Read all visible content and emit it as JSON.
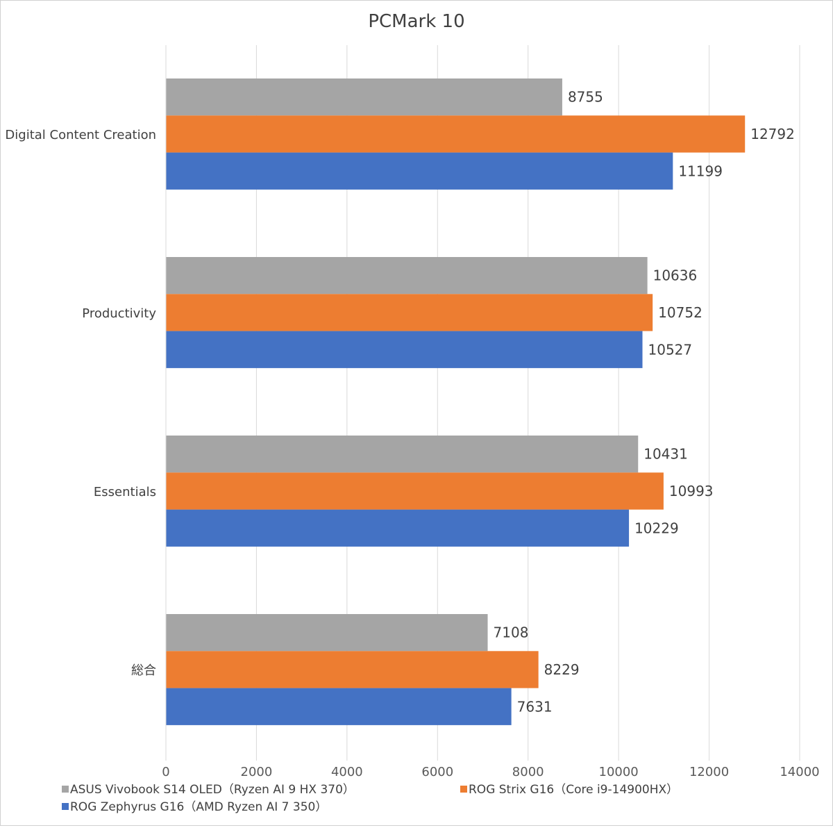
{
  "chart_data": {
    "type": "bar",
    "orientation": "horizontal",
    "title": "PCMark 10",
    "xlabel": "",
    "ylabel": "",
    "xlim": [
      0,
      14000
    ],
    "x_ticks": [
      "0",
      "2000",
      "4000",
      "6000",
      "8000",
      "10000",
      "12000",
      "14000"
    ],
    "categories": [
      "Digital Content Creation",
      "Productivity",
      "Essentials",
      "総合"
    ],
    "series": [
      {
        "name": "ASUS Vivobook S14 OLED（Ryzen AI 9 HX 370）",
        "color": "#a5a5a5",
        "values": [
          8755,
          10636,
          10431,
          7108
        ]
      },
      {
        "name": "ROG Strix G16（Core i9-14900HX）",
        "color": "#ed7d31",
        "values": [
          12792,
          10752,
          10993,
          8229
        ]
      },
      {
        "name": "ROG Zephyrus G16（AMD Ryzen AI 7 350）",
        "color": "#4472c4",
        "values": [
          11199,
          10527,
          10229,
          7631
        ]
      }
    ],
    "grid": "vertical",
    "data_labels": true,
    "legend_position": "bottom"
  }
}
